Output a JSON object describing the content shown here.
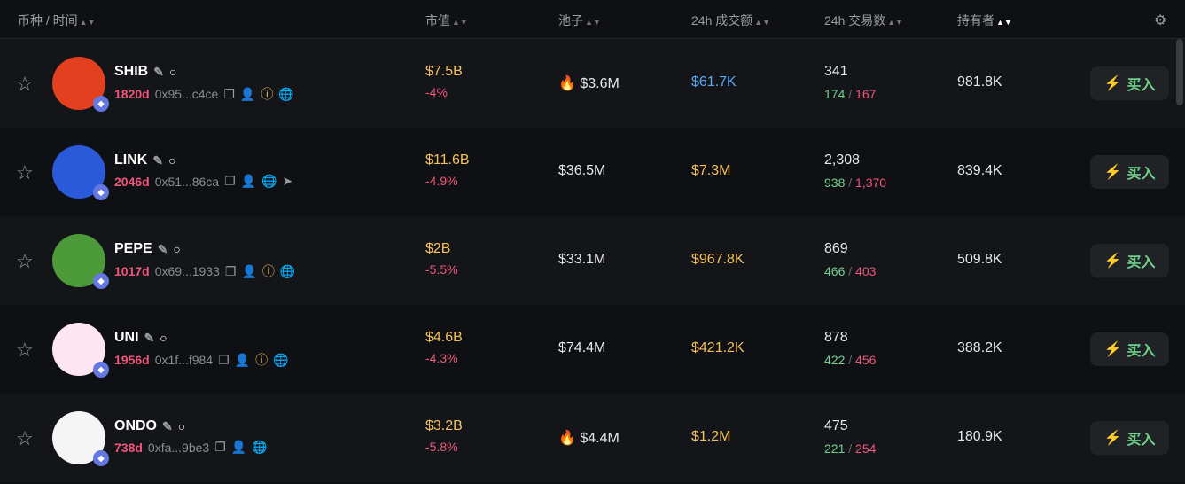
{
  "header": {
    "coin_time": "币种 / 时间",
    "market_cap": "市值",
    "pool": "池子",
    "volume_24h": "24h 成交额",
    "txns_24h": "24h 交易数",
    "holders": "持有者"
  },
  "colors": {
    "positive": "#6fd28a",
    "negative": "#f0557a",
    "accent_yellow": "#f5c15a",
    "accent_blue": "#5aa9f5"
  },
  "buy_label": "买入",
  "rows": [
    {
      "symbol": "SHIB",
      "age": "1820d",
      "address": "0x95...c4ce",
      "icons": [
        "copy-icon",
        "user-icon",
        "warning-icon",
        "globe-icon"
      ],
      "market_cap": "$7.5B",
      "change": "-4%",
      "pool": "$3.6M",
      "pool_hot": true,
      "volume": "$61.7K",
      "volume_color": "#5aa9f5",
      "txns": "341",
      "buys": "174",
      "sells": "167",
      "holders": "981.8K",
      "avatar_bg": "#e2401f"
    },
    {
      "symbol": "LINK",
      "age": "2046d",
      "address": "0x51...86ca",
      "icons": [
        "copy-icon",
        "user-icon",
        "globe-icon",
        "telegram-icon"
      ],
      "market_cap": "$11.6B",
      "change": "-4.9%",
      "pool": "$36.5M",
      "pool_hot": false,
      "volume": "$7.3M",
      "volume_color": "#f5c15a",
      "txns": "2,308",
      "buys": "938",
      "sells": "1,370",
      "holders": "839.4K",
      "avatar_bg": "#2a5ada"
    },
    {
      "symbol": "PEPE",
      "age": "1017d",
      "address": "0x69...1933",
      "icons": [
        "copy-icon",
        "user-icon",
        "warning-icon",
        "globe-icon"
      ],
      "market_cap": "$2B",
      "change": "-5.5%",
      "pool": "$33.1M",
      "pool_hot": false,
      "volume": "$967.8K",
      "volume_color": "#f5c15a",
      "txns": "869",
      "buys": "466",
      "sells": "403",
      "holders": "509.8K",
      "avatar_bg": "#4c9a3a"
    },
    {
      "symbol": "UNI",
      "age": "1956d",
      "address": "0x1f...f984",
      "icons": [
        "copy-icon",
        "user-icon",
        "warning-icon",
        "globe-icon"
      ],
      "market_cap": "$4.6B",
      "change": "-4.3%",
      "pool": "$74.4M",
      "pool_hot": false,
      "volume": "$421.2K",
      "volume_color": "#f5c15a",
      "txns": "878",
      "buys": "422",
      "sells": "456",
      "holders": "388.2K",
      "avatar_bg": "#fde6f1"
    },
    {
      "symbol": "ONDO",
      "age": "738d",
      "address": "0xfa...9be3",
      "icons": [
        "copy-icon",
        "user-icon",
        "globe-icon"
      ],
      "market_cap": "$3.2B",
      "change": "-5.8%",
      "pool": "$4.4M",
      "pool_hot": true,
      "volume": "$1.2M",
      "volume_color": "#f5c15a",
      "txns": "475",
      "buys": "221",
      "sells": "254",
      "holders": "180.9K",
      "avatar_bg": "#f5f5f5"
    }
  ]
}
